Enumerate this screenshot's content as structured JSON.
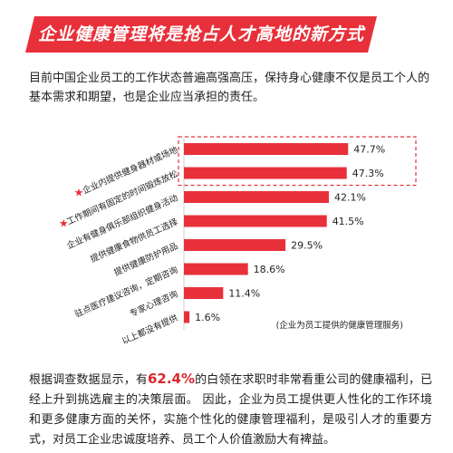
{
  "banner": {
    "title": "企业健康管理将是抢占人才高地的新方式"
  },
  "intro": "目前中国企业员工的工作状态普遍高强高压，保持身心健康不仅是员工个人的基本需求和期望，也是企业应当承担的责任。",
  "colors": {
    "accent": "#e8303a",
    "star": "#e8303a",
    "highlight_box": "#e8303a"
  },
  "chart_data": {
    "type": "bar",
    "orientation": "horizontal",
    "categories": [
      "企业内提供健身器材或场地",
      "工作期间有固定的时间锻炼放松",
      "企业有健身俱乐部组织健身活动",
      "提供健康食物供员工选择",
      "提供健康防护用品",
      "驻点医疗建议咨询，定期咨询",
      "专家心理咨询",
      "以上都没有提供"
    ],
    "values": [
      47.7,
      47.3,
      42.1,
      41.5,
      29.5,
      18.6,
      11.4,
      1.6
    ],
    "value_labels": [
      "47.7%",
      "47.3%",
      "42.1%",
      "41.5%",
      "29.5%",
      "18.6%",
      "11.4%",
      "1.6%"
    ],
    "starred": [
      true,
      true,
      false,
      false,
      false,
      false,
      false,
      false
    ],
    "highlighted": [
      true,
      true,
      false,
      false,
      false,
      false,
      false,
      false
    ],
    "note": "(企业为员工提供的健康管理服务)",
    "xlim": [
      0,
      50
    ],
    "grid": false,
    "legend": "none"
  },
  "footer": {
    "part1": "根据调查数据显示，有",
    "highlight": "62.4%",
    "part2": "的白领在求职时非常看重公司的健康福利，已经上升到挑选雇主的决策层面。  因此，企业为员工提供更人性化的工作环境和更多健康方面的关怀，实施个性化的健康管理福利，是吸引人才的重要方式，对员工企业忠诚度培养、员工个人价值激励大有裨益。"
  }
}
